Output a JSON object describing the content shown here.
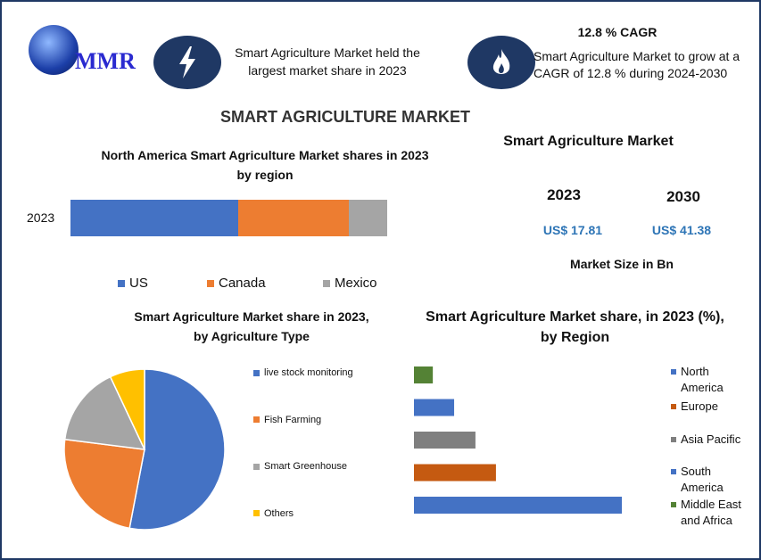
{
  "logo": {
    "text": "MMR"
  },
  "header": {
    "held_text": "Smart Agriculture Market held the largest market share in 2023",
    "cagr_title": "12.8 % CAGR",
    "cagr_text": "Smart Agriculture Market to grow at a CAGR of 12.8 % during 2024-2030",
    "icons": [
      "lightning-icon",
      "flame-icon"
    ]
  },
  "main_title": "SMART AGRICULTURE MARKET",
  "market_size": {
    "title": "Smart Agriculture Market",
    "year1": "2023",
    "value1": "US$ 17.81",
    "year2": "2030",
    "value2": "US$ 41.38",
    "caption": "Market Size in Bn",
    "value_color": "#2e75b6"
  },
  "chart_data": [
    {
      "type": "bar",
      "orientation": "horizontal",
      "stacked": true,
      "title": "North America Smart Agriculture Market shares in 2023 by region",
      "categories": [
        "2023"
      ],
      "series": [
        {
          "name": "US",
          "values": [
            53
          ],
          "color": "#4472c4"
        },
        {
          "name": "Canada",
          "values": [
            35
          ],
          "color": "#ed7d31"
        },
        {
          "name": "Mexico",
          "values": [
            12
          ],
          "color": "#a5a5a5"
        }
      ],
      "legend": "bottom"
    },
    {
      "type": "pie",
      "title": "Smart Agriculture Market share in 2023, by Agriculture Type",
      "labels": [
        "live stock monitoring",
        "Fish Farming",
        "Smart Greenhouse",
        "Others"
      ],
      "values": [
        53,
        24,
        16,
        7
      ],
      "colors": [
        "#4472c4",
        "#ed7d31",
        "#a5a5a5",
        "#ffc000"
      ],
      "legend": "right"
    },
    {
      "type": "bar",
      "orientation": "horizontal",
      "title": "Smart Agriculture Market share, in 2023 (%), by Region",
      "categories": [
        "North America",
        "Europe",
        "Asia Pacific",
        "South America",
        "Middle East and Africa"
      ],
      "values": [
        50.7,
        20,
        15,
        9.8,
        4.6
      ],
      "colors": [
        "#4472c4",
        "#c55a11",
        "#7f7f7f",
        "#4472c4",
        "#548235"
      ],
      "legend": "right"
    }
  ]
}
